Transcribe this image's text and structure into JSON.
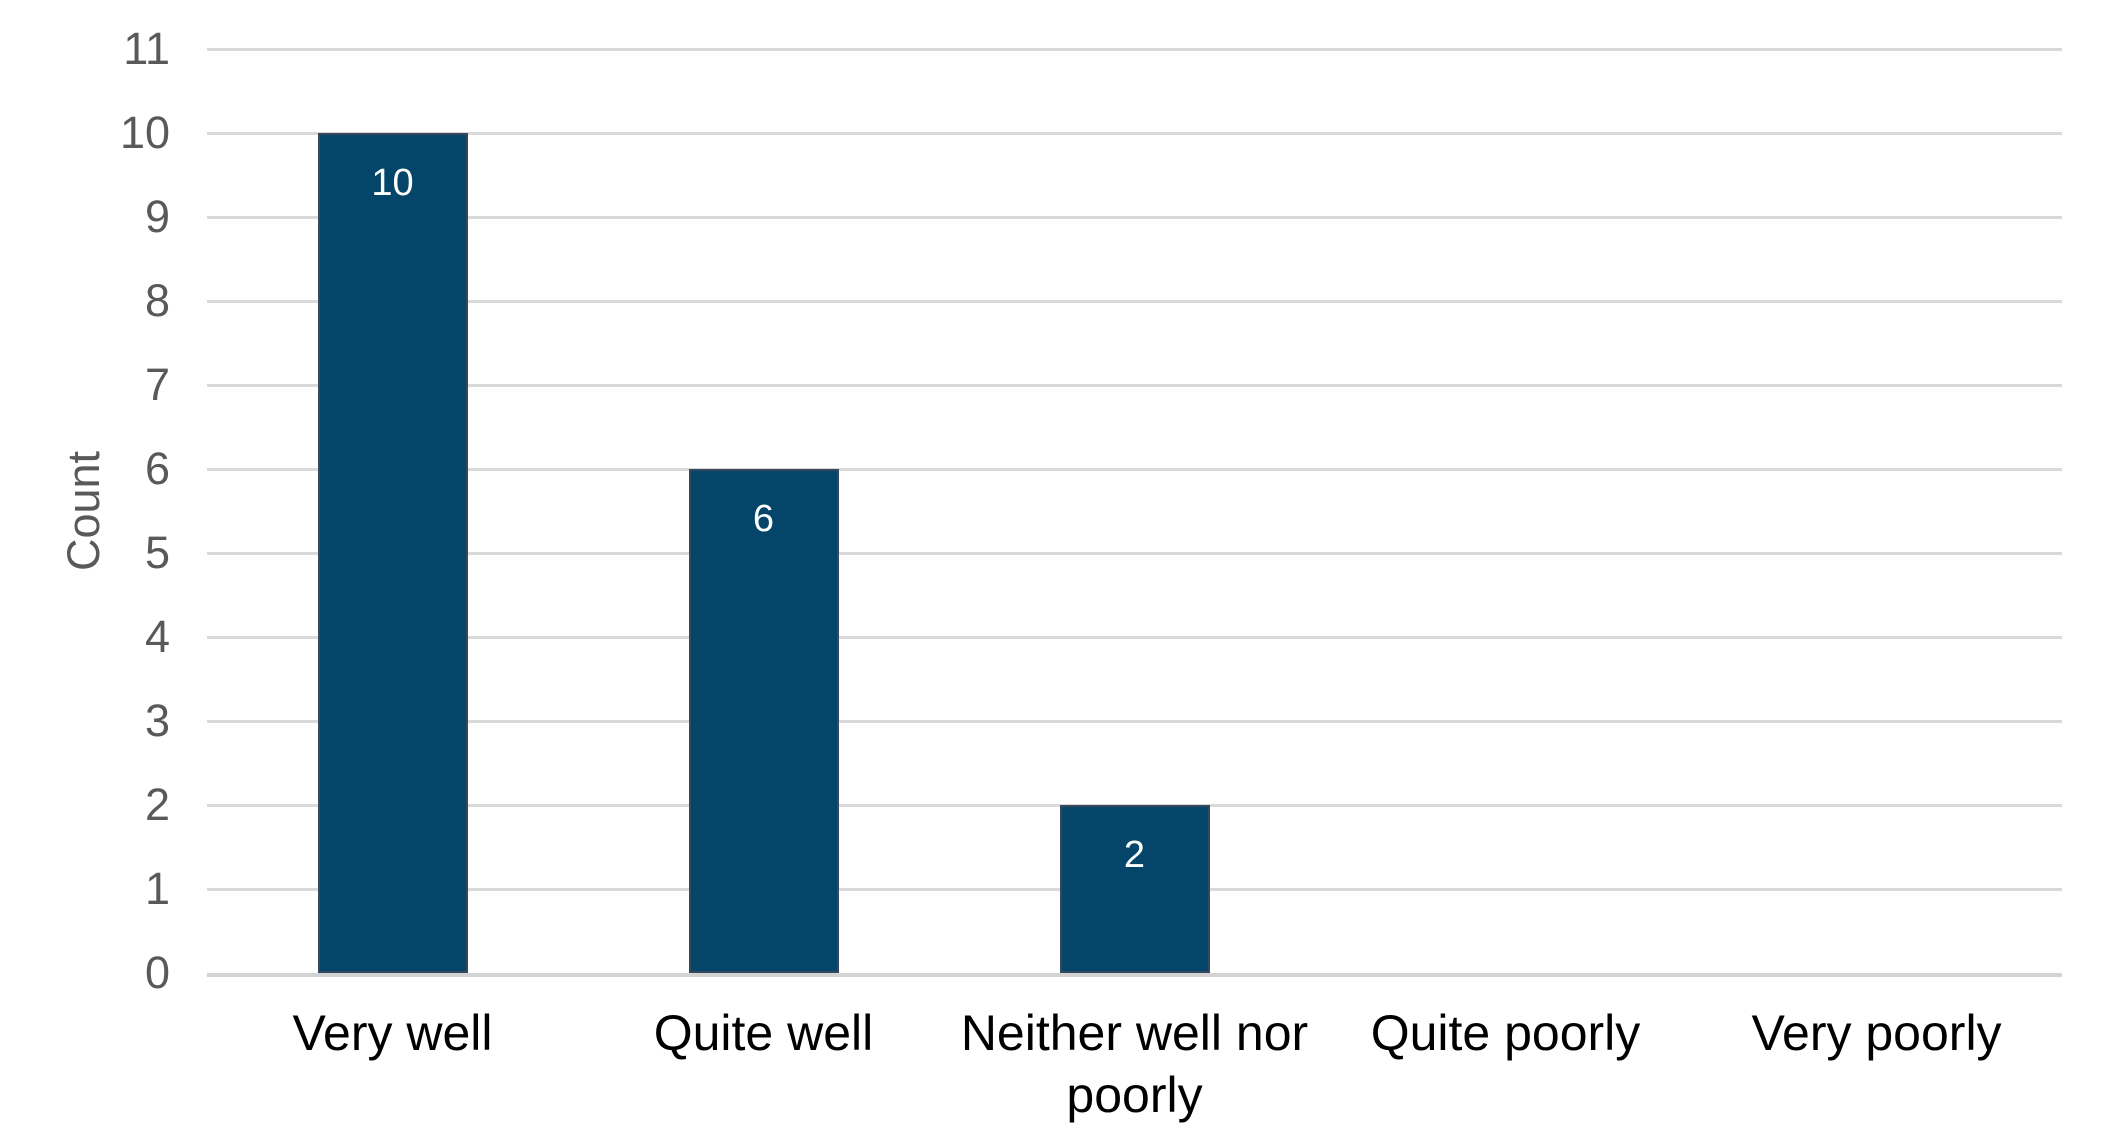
{
  "chart_data": {
    "type": "bar",
    "title": "",
    "xlabel": "",
    "ylabel": "Count",
    "categories": [
      "Very well",
      "Quite well",
      "Neither well nor poorly",
      "Quite poorly",
      "Very poorly"
    ],
    "xtick_labels": [
      "Very well",
      "Quite well",
      "Neither well nor\npoorly",
      "Quite poorly",
      "Very poorly"
    ],
    "values": [
      10,
      6,
      2,
      0,
      0
    ],
    "data_labels": [
      "10",
      "6",
      "2",
      "",
      ""
    ],
    "ylim": [
      0,
      11
    ],
    "yticks": [
      0,
      1,
      2,
      3,
      4,
      5,
      6,
      7,
      8,
      9,
      10,
      11
    ],
    "grid": "horizontal",
    "legend": "none",
    "colors": {
      "bar_fill": "#044569",
      "bar_border": "#35485c",
      "gridline": "#d9d9d9",
      "axis_line": "#d3d3d3",
      "axis_tick_text": "#595959",
      "axis_title_text": "#595959",
      "category_text": "#000000",
      "data_label_text": "#ffffff",
      "background": "#ffffff"
    }
  }
}
